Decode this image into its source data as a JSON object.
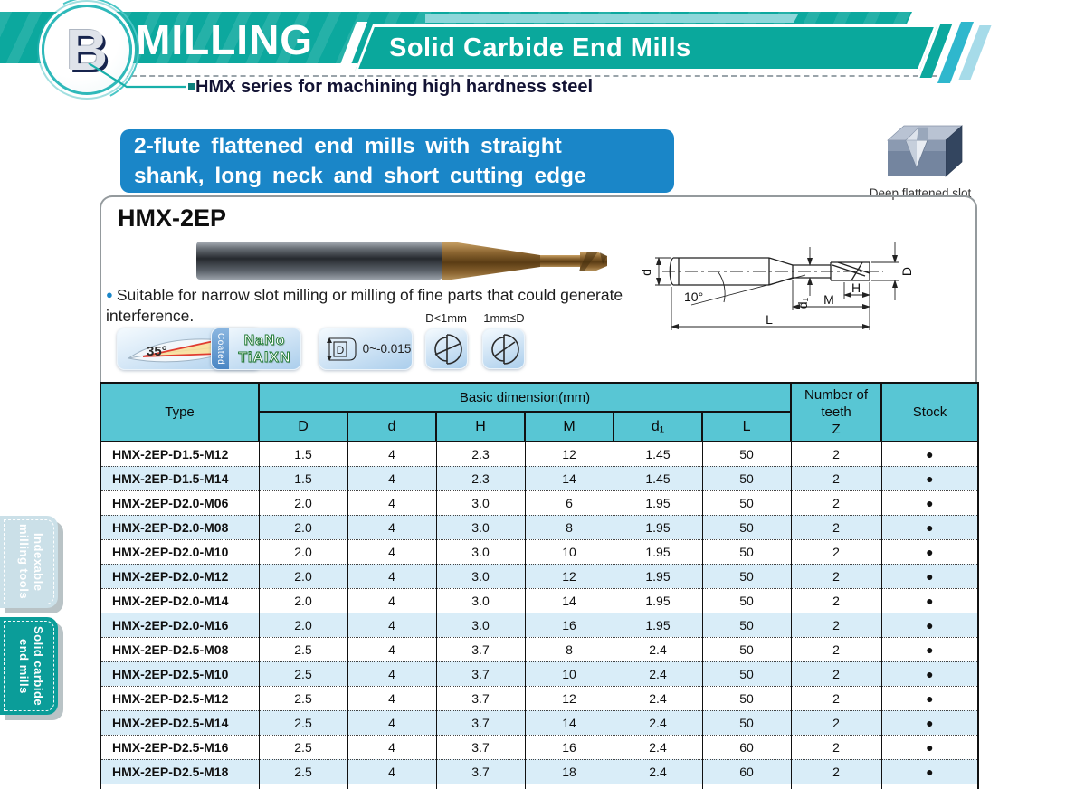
{
  "header": {
    "section_letter": "B",
    "title": "MILLING",
    "subtitle": "Solid Carbide End Mills",
    "series_note": "HMX series for machining high hardness steel",
    "colors": {
      "teal": "#0ca89e",
      "stripe_cyan": "#2fb7cd",
      "stripe_light": "#a6dbe9"
    }
  },
  "banner": {
    "line1": "2-flute flattened end mills with straight",
    "line2": "shank, long neck and short cutting edge",
    "color": "#1a86c8"
  },
  "slot_figure": {
    "caption": "Deep flattened slot"
  },
  "product": {
    "model": "HMX-2EP",
    "bullet": "●",
    "desc_line1": "Suitable for narrow slot milling or milling of fine parts that could generate",
    "desc_line2": "interference."
  },
  "diagram": {
    "labels": {
      "shank_dia": "d",
      "angle": "10°",
      "neck_dia": "d₁",
      "cut_len": "H",
      "neck_len": "M",
      "cut_dia": "D",
      "overall_len": "L"
    }
  },
  "features": {
    "helix": "35°",
    "coated": "Coated",
    "coating_line1": "NaNo",
    "coating_line2": "TiAlXN",
    "tol_letter": "D",
    "tolerance": "0~-0.015",
    "flute_small": "D<1mm",
    "flute_large": "1mm≤D"
  },
  "sidebar": {
    "tabs": [
      {
        "line1": "Indexable",
        "line2": "milling tools"
      },
      {
        "line1": "Solid carbide",
        "line2": "end mills"
      }
    ]
  },
  "table": {
    "col_type": "Type",
    "group_header": "Basic dimension(mm)",
    "dim_cols": [
      "D",
      "d",
      "H",
      "M",
      "d₁",
      "L"
    ],
    "teeth_lines": [
      "Number of",
      "teeth",
      "Z"
    ],
    "col_stock": "Stock",
    "stock_symbol": "●",
    "rows": [
      {
        "type": "HMX-2EP-D1.5-M12",
        "values": [
          "1.5",
          "4",
          "2.3",
          "12",
          "1.45",
          "50",
          "2"
        ],
        "stock": "●"
      },
      {
        "type": "HMX-2EP-D1.5-M14",
        "values": [
          "1.5",
          "4",
          "2.3",
          "14",
          "1.45",
          "50",
          "2"
        ],
        "stock": "●"
      },
      {
        "type": "HMX-2EP-D2.0-M06",
        "values": [
          "2.0",
          "4",
          "3.0",
          "6",
          "1.95",
          "50",
          "2"
        ],
        "stock": "●"
      },
      {
        "type": "HMX-2EP-D2.0-M08",
        "values": [
          "2.0",
          "4",
          "3.0",
          "8",
          "1.95",
          "50",
          "2"
        ],
        "stock": "●"
      },
      {
        "type": "HMX-2EP-D2.0-M10",
        "values": [
          "2.0",
          "4",
          "3.0",
          "10",
          "1.95",
          "50",
          "2"
        ],
        "stock": "●"
      },
      {
        "type": "HMX-2EP-D2.0-M12",
        "values": [
          "2.0",
          "4",
          "3.0",
          "12",
          "1.95",
          "50",
          "2"
        ],
        "stock": "●"
      },
      {
        "type": "HMX-2EP-D2.0-M14",
        "values": [
          "2.0",
          "4",
          "3.0",
          "14",
          "1.95",
          "50",
          "2"
        ],
        "stock": "●"
      },
      {
        "type": "HMX-2EP-D2.0-M16",
        "values": [
          "2.0",
          "4",
          "3.0",
          "16",
          "1.95",
          "50",
          "2"
        ],
        "stock": "●"
      },
      {
        "type": "HMX-2EP-D2.5-M08",
        "values": [
          "2.5",
          "4",
          "3.7",
          "8",
          "2.4",
          "50",
          "2"
        ],
        "stock": "●"
      },
      {
        "type": "HMX-2EP-D2.5-M10",
        "values": [
          "2.5",
          "4",
          "3.7",
          "10",
          "2.4",
          "50",
          "2"
        ],
        "stock": "●"
      },
      {
        "type": "HMX-2EP-D2.5-M12",
        "values": [
          "2.5",
          "4",
          "3.7",
          "12",
          "2.4",
          "50",
          "2"
        ],
        "stock": "●"
      },
      {
        "type": "HMX-2EP-D2.5-M14",
        "values": [
          "2.5",
          "4",
          "3.7",
          "14",
          "2.4",
          "50",
          "2"
        ],
        "stock": "●"
      },
      {
        "type": "HMX-2EP-D2.5-M16",
        "values": [
          "2.5",
          "4",
          "3.7",
          "16",
          "2.4",
          "60",
          "2"
        ],
        "stock": "●"
      },
      {
        "type": "HMX-2EP-D2.5-M18",
        "values": [
          "2.5",
          "4",
          "3.7",
          "18",
          "2.4",
          "60",
          "2"
        ],
        "stock": "●"
      }
    ],
    "partial_row": {
      "type": "",
      "values": [
        "",
        "",
        "",
        "",
        "",
        "",
        ""
      ],
      "stock": ""
    }
  }
}
